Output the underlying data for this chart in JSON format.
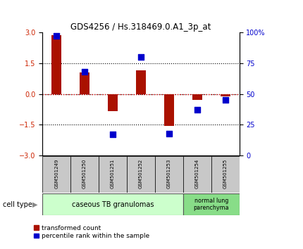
{
  "title": "GDS4256 / Hs.318469.0.A1_3p_at",
  "samples": [
    "GSM501249",
    "GSM501250",
    "GSM501251",
    "GSM501252",
    "GSM501253",
    "GSM501254",
    "GSM501255"
  ],
  "red_bars": [
    2.85,
    1.05,
    -0.85,
    1.15,
    -1.55,
    -0.28,
    -0.12
  ],
  "blue_dots": [
    97,
    68,
    17,
    80,
    18,
    37,
    45
  ],
  "ylim_left": [
    -3,
    3
  ],
  "ylim_right": [
    0,
    100
  ],
  "yticks_left": [
    -3,
    -1.5,
    0,
    1.5,
    3
  ],
  "yticks_right": [
    0,
    25,
    50,
    75,
    100
  ],
  "ytick_labels_right": [
    "0",
    "25",
    "50",
    "75",
    "100%"
  ],
  "hlines": [
    1.5,
    -1.5,
    0.0
  ],
  "bar_color": "#aa1100",
  "dot_color": "#0000cc",
  "zero_line_color": "#dd0000",
  "grid_color": "#000000",
  "cell_type_label": "cell type",
  "group1_label": "caseous TB granulomas",
  "group2_label": "normal lung\nparenchyma",
  "group1_color": "#ccffcc",
  "group2_color": "#88dd88",
  "legend_red": "transformed count",
  "legend_blue": "percentile rank within the sample",
  "bar_width": 0.35,
  "dot_size": 28,
  "left_axis_color": "#cc2200",
  "right_axis_color": "#0000cc",
  "sample_box_color": "#c8c8c8",
  "figsize": [
    4.3,
    3.54
  ],
  "dpi": 100
}
